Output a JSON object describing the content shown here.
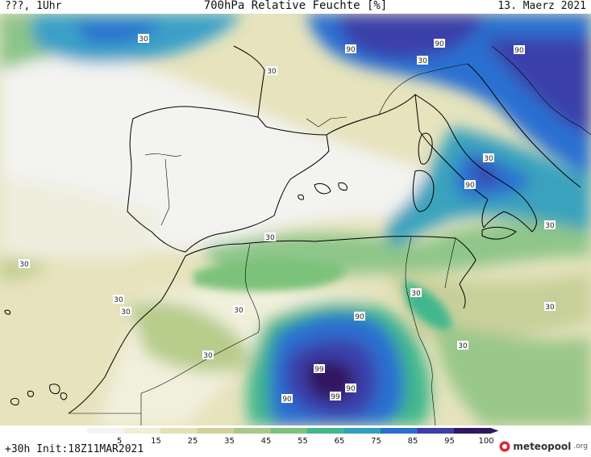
{
  "header": {
    "left": "???, 1Uhr",
    "title": "700hPa Relative Feuchte [%]",
    "date": "13. Maerz 2021"
  },
  "footer": {
    "run_info": "+30h Init:18Z11MAR2021",
    "brand": "meteopool",
    "brand_tld": ".org"
  },
  "legend": {
    "ticks": [
      "5",
      "15",
      "25",
      "35",
      "45",
      "55",
      "65",
      "75",
      "85",
      "95",
      "100"
    ],
    "colors": [
      "#f4f4f4",
      "#efeed6",
      "#e3e0b6",
      "#cfd199",
      "#a9c98a",
      "#7cc27a",
      "#42b78d",
      "#2d9fbf",
      "#2a6fd0",
      "#3b3faa",
      "#301860"
    ]
  },
  "contour_labels": [
    "30",
    "30",
    "30",
    "30",
    "30",
    "30",
    "30",
    "30",
    "30",
    "30",
    "30",
    "30",
    "30",
    "30",
    "90",
    "90",
    "90",
    "90",
    "90",
    "90",
    "90",
    "99",
    "99"
  ]
}
